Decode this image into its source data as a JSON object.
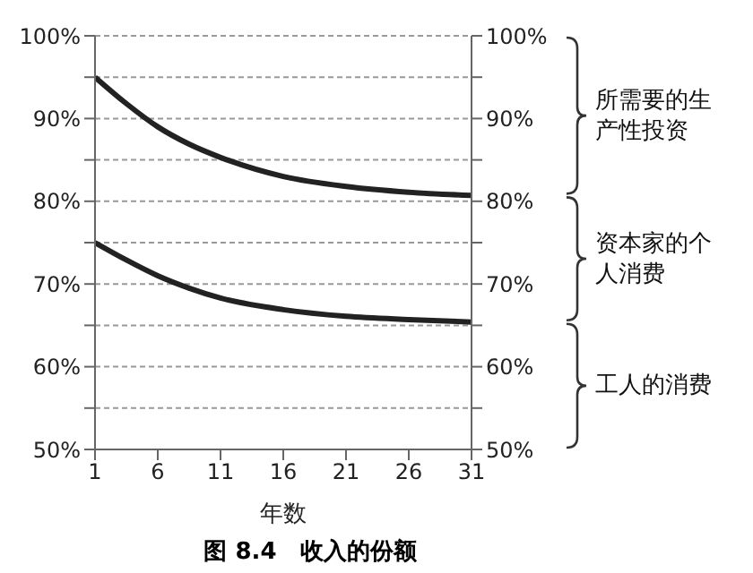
{
  "chart_data": {
    "type": "line",
    "title": "图 8.4　收入的份额",
    "xlabel": "年数",
    "x": [
      1,
      3.5,
      6,
      8.5,
      11,
      16,
      21,
      26,
      31
    ],
    "series": [
      {
        "color": "#222222",
        "values": [
          95,
          91.8,
          89,
          86.9,
          85.3,
          83,
          81.8,
          81.1,
          80.7
        ]
      },
      {
        "color": "#222222",
        "values": [
          75,
          72.9,
          71,
          69.5,
          68.3,
          66.9,
          66.1,
          65.7,
          65.4
        ]
      }
    ],
    "xlim": [
      1,
      31
    ],
    "xticks": [
      1,
      6,
      11,
      16,
      21,
      26,
      31
    ],
    "ylim": [
      50,
      100
    ],
    "yticks": [
      {
        "value": 50,
        "label": "50%"
      },
      {
        "value": 55,
        "label": null
      },
      {
        "value": 60,
        "label": "60%"
      },
      {
        "value": 65,
        "label": null
      },
      {
        "value": 70,
        "label": "70%"
      },
      {
        "value": 75,
        "label": null
      },
      {
        "value": 80,
        "label": "80%"
      },
      {
        "value": 85,
        "label": null
      },
      {
        "value": 90,
        "label": "90%"
      },
      {
        "value": 95,
        "label": null
      },
      {
        "value": 100,
        "label": "100%"
      }
    ],
    "y2lim": [
      50,
      100
    ],
    "y2ticks": [
      {
        "value": 50,
        "label": "50%"
      },
      {
        "value": 55,
        "label": null
      },
      {
        "value": 60,
        "label": "60%"
      },
      {
        "value": 65,
        "label": null
      },
      {
        "value": 70,
        "label": "70%"
      },
      {
        "value": 75,
        "label": null
      },
      {
        "value": 80,
        "label": "80%"
      },
      {
        "value": 85,
        "label": null
      },
      {
        "value": 90,
        "label": "90%"
      },
      {
        "value": 95,
        "label": null
      },
      {
        "value": 100,
        "label": "100%"
      }
    ],
    "grid": "y",
    "marker": "none",
    "line_style": "solid",
    "annotations": [
      "所需要的生产性投资",
      "资本家的个人消费",
      "工人的消费"
    ]
  }
}
